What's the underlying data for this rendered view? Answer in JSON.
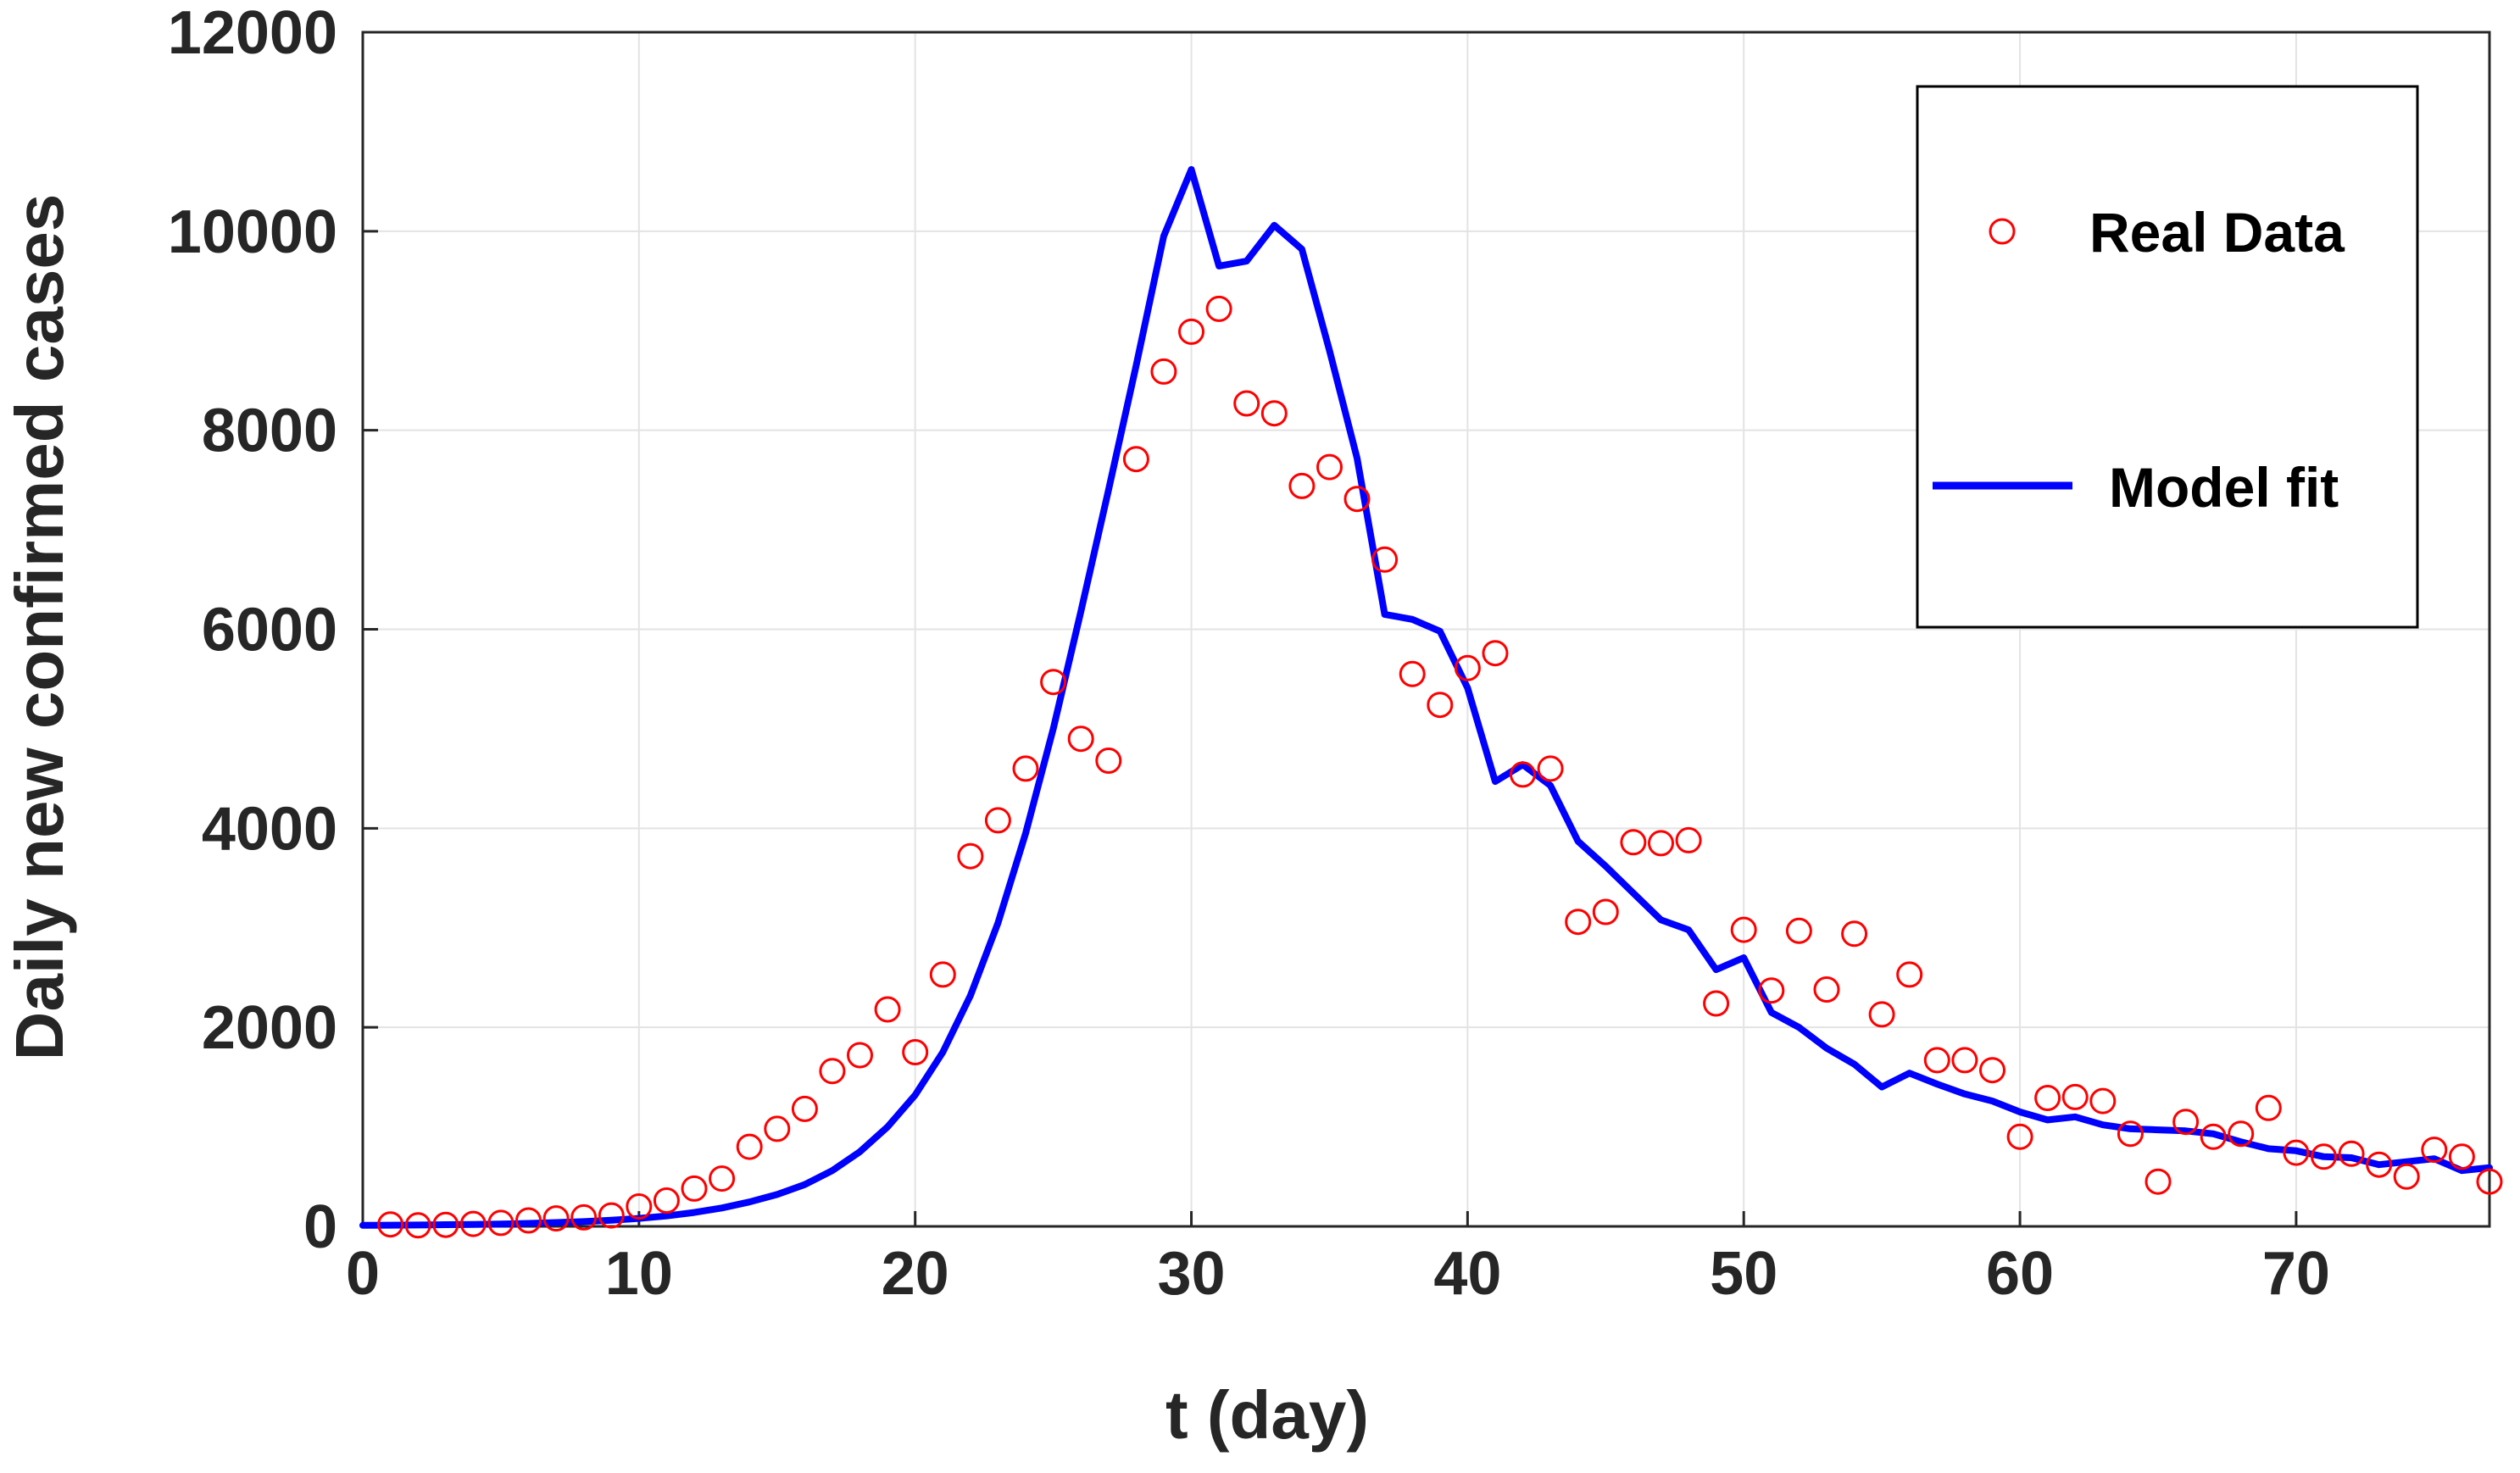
{
  "chart_data": {
    "type": "scatter+line",
    "title": "",
    "xlabel": "t (day)",
    "ylabel": "Daily new confirmed cases",
    "xlim": [
      0,
      77
    ],
    "ylim": [
      0,
      12000
    ],
    "xticks": [
      0,
      10,
      20,
      30,
      40,
      50,
      60,
      70
    ],
    "yticks": [
      0,
      2000,
      4000,
      6000,
      8000,
      10000,
      12000
    ],
    "grid": true,
    "legend_position": "top-right",
    "series": [
      {
        "name": "Real Data",
        "kind": "scatter",
        "marker": "circle-open",
        "color": "#ff0000",
        "x": [
          1,
          2,
          3,
          4,
          5,
          6,
          7,
          8,
          9,
          10,
          11,
          12,
          13,
          14,
          15,
          16,
          17,
          18,
          19,
          20,
          21,
          22,
          23,
          24,
          25,
          26,
          27,
          28,
          29,
          30,
          31,
          32,
          33,
          34,
          35,
          36,
          37,
          38,
          39,
          40,
          41,
          42,
          43,
          44,
          45,
          46,
          47,
          48,
          49,
          50,
          51,
          52,
          53,
          54,
          55,
          56,
          57,
          58,
          59,
          60,
          61,
          62,
          63,
          64,
          65,
          66,
          67,
          68,
          69,
          70,
          71,
          72,
          73,
          74,
          75,
          76,
          77
        ],
        "y": [
          20,
          10,
          15,
          25,
          35,
          60,
          80,
          90,
          110,
          200,
          260,
          380,
          480,
          800,
          980,
          1180,
          1560,
          1720,
          2180,
          1750,
          2530,
          3720,
          4080,
          4600,
          5470,
          4900,
          4680,
          7710,
          8590,
          8990,
          9220,
          8270,
          8170,
          7440,
          7630,
          7310,
          6700,
          5550,
          5240,
          5610,
          5760,
          4540,
          4600,
          3060,
          3160,
          3860,
          3850,
          3880,
          2240,
          2980,
          2370,
          2970,
          2380,
          2940,
          2130,
          2530,
          1670,
          1670,
          1570,
          900,
          1290,
          1300,
          1260,
          930,
          450,
          1050,
          900,
          930,
          1190,
          740,
          700,
          730,
          620,
          500,
          770,
          700,
          450
        ]
      },
      {
        "name": "Model fit",
        "kind": "line",
        "color": "#0000ff",
        "x": [
          0,
          1,
          2,
          3,
          4,
          5,
          6,
          7,
          8,
          9,
          10,
          11,
          12,
          13,
          14,
          15,
          16,
          17,
          18,
          19,
          20,
          21,
          22,
          23,
          24,
          25,
          26,
          27,
          28,
          29,
          30,
          31,
          32,
          33,
          34,
          35,
          36,
          37,
          38,
          39,
          40,
          41,
          42,
          43,
          44,
          45,
          46,
          47,
          48,
          49,
          50,
          51,
          52,
          53,
          54,
          55,
          56,
          57,
          58,
          59,
          60,
          61,
          62,
          63,
          64,
          65,
          66,
          67,
          68,
          69,
          70,
          71,
          72,
          73,
          74,
          75,
          76,
          77
        ],
        "y": [
          10,
          12,
          14,
          17,
          20,
          24,
          30,
          38,
          48,
          62,
          80,
          105,
          140,
          185,
          245,
          320,
          420,
          560,
          750,
          1000,
          1320,
          1750,
          2320,
          3050,
          3950,
          5000,
          6180,
          7400,
          8650,
          9950,
          10620,
          9650,
          9700,
          10060,
          9820,
          8800,
          7720,
          6150,
          6100,
          5980,
          5410,
          4470,
          4640,
          4430,
          3870,
          3620,
          3350,
          3080,
          2980,
          2580,
          2700,
          2150,
          2000,
          1790,
          1630,
          1400,
          1540,
          1430,
          1330,
          1260,
          1150,
          1070,
          1100,
          1020,
          980,
          970,
          960,
          930,
          850,
          780,
          760,
          700,
          690,
          620,
          650,
          680,
          560,
          590
        ]
      }
    ]
  }
}
